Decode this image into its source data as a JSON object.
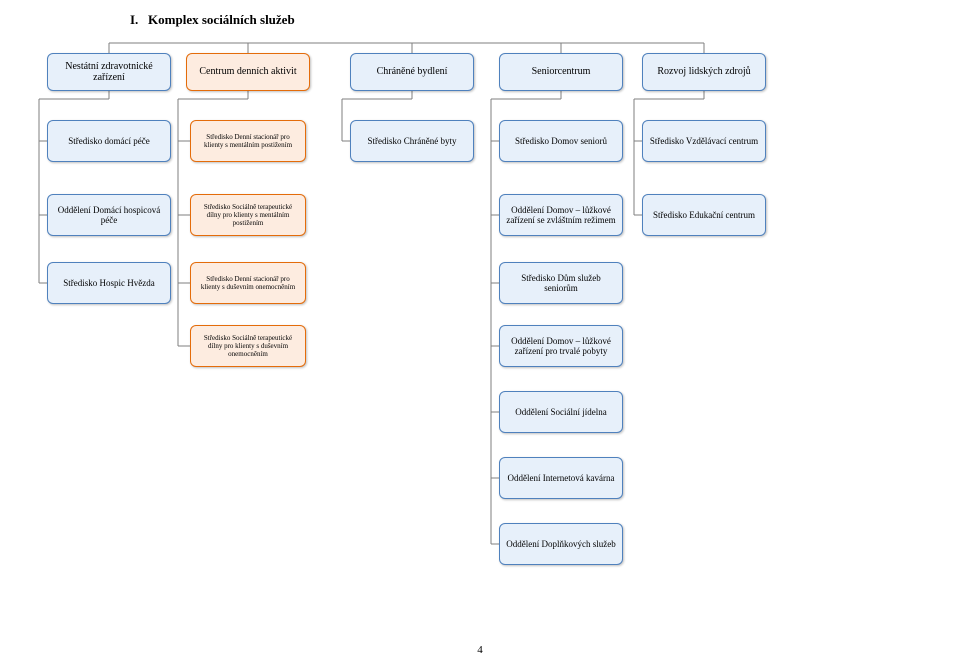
{
  "title": "I.   Komplex sociálních služeb",
  "title_fontsize": 13,
  "pageNumber": "4",
  "connector_color": "#7f7f7f",
  "palette": {
    "blue": {
      "fill": "#e7f0fa",
      "border": "#4f81bd"
    },
    "orange": {
      "fill": "#fdece0",
      "border": "#e46c0a"
    }
  },
  "layout": {
    "cols": [
      109,
      248,
      412,
      561,
      704,
      848
    ],
    "row_y": {
      "r1": 72,
      "r2": 141,
      "r3": 215,
      "r4": 283,
      "r5": 346,
      "r6": 412,
      "r7": 478,
      "r8": 544,
      "r9": 608
    },
    "top_box": {
      "w": 124,
      "h": 38,
      "fs": 10
    },
    "mid_box": {
      "w": 124,
      "h": 42,
      "fs": 9
    },
    "small_box": {
      "w": 116,
      "h": 42,
      "fs": 7
    }
  },
  "nodes": [
    {
      "id": "n1",
      "row": "r1",
      "col": 0,
      "color": "blue",
      "size": "top",
      "text": "Nestátní zdravotnické zařízení"
    },
    {
      "id": "n2",
      "row": "r1",
      "col": 1,
      "color": "orange",
      "size": "top",
      "text": "Centrum denních aktivit"
    },
    {
      "id": "n3",
      "row": "r1",
      "col": 2,
      "color": "blue",
      "size": "top",
      "text": "Chráněné bydlení"
    },
    {
      "id": "n4",
      "row": "r1",
      "col": 3,
      "color": "blue",
      "size": "top",
      "text": "Seniorcentrum"
    },
    {
      "id": "n5",
      "row": "r1",
      "col": 4,
      "color": "blue",
      "size": "top",
      "text": "Rozvoj lidských zdrojů"
    },
    {
      "id": "n6",
      "row": "r2",
      "col": 0,
      "color": "blue",
      "size": "mid",
      "text": "Středisko domácí péče"
    },
    {
      "id": "n7",
      "row": "r2",
      "col": 1,
      "color": "orange",
      "size": "small",
      "text": "Středisko Denní stacionář pro klienty s mentálním postižením"
    },
    {
      "id": "n8",
      "row": "r2",
      "col": 2,
      "color": "blue",
      "size": "mid",
      "text": "Středisko Chráněné byty"
    },
    {
      "id": "n9",
      "row": "r2",
      "col": 3,
      "color": "blue",
      "size": "mid",
      "text": "Středisko Domov seniorů"
    },
    {
      "id": "n10",
      "row": "r2",
      "col": 4,
      "color": "blue",
      "size": "mid",
      "text": "Středisko Vzdělávací centrum"
    },
    {
      "id": "n11",
      "row": "r3",
      "col": 0,
      "color": "blue",
      "size": "mid",
      "text": "Oddělení Domácí hospicová péče"
    },
    {
      "id": "n12",
      "row": "r3",
      "col": 1,
      "color": "orange",
      "size": "small",
      "text": "Středisko Sociálně terapeutické dílny pro klienty s mentálním postižením"
    },
    {
      "id": "n13",
      "row": "r3",
      "col": 3,
      "color": "blue",
      "size": "mid",
      "text": "Oddělení Domov – lůžkové zařízení se zvláštním režimem"
    },
    {
      "id": "n14",
      "row": "r3",
      "col": 4,
      "color": "blue",
      "size": "mid",
      "text": "Středisko Edukační centrum"
    },
    {
      "id": "n15",
      "row": "r4",
      "col": 0,
      "color": "blue",
      "size": "mid",
      "text": "Středisko Hospic Hvězda"
    },
    {
      "id": "n16",
      "row": "r4",
      "col": 1,
      "color": "orange",
      "size": "small",
      "text": "Středisko Denní stacionář pro klienty s duševním onemocněním"
    },
    {
      "id": "n17",
      "row": "r4",
      "col": 3,
      "color": "blue",
      "size": "mid",
      "text": "Středisko Dům služeb seniorům"
    },
    {
      "id": "n18",
      "row": "r5",
      "col": 1,
      "color": "orange",
      "size": "small",
      "text": "Středisko Sociálně terapeutické dílny pro klienty s duševním onemocněním"
    },
    {
      "id": "n19",
      "row": "r5",
      "col": 3,
      "color": "blue",
      "size": "mid",
      "text": "Oddělení Domov – lůžkové zařízení pro trvalé pobyty"
    },
    {
      "id": "n20",
      "row": "r6",
      "col": 3,
      "color": "blue",
      "size": "mid",
      "text": "Oddělení Sociální jídelna"
    },
    {
      "id": "n21",
      "row": "r7",
      "col": 3,
      "color": "blue",
      "size": "mid",
      "text": "Oddělení Internetová kavárna"
    },
    {
      "id": "n22",
      "row": "r8",
      "col": 3,
      "color": "blue",
      "size": "mid",
      "text": "Oddělení Doplňkových služeb"
    }
  ]
}
